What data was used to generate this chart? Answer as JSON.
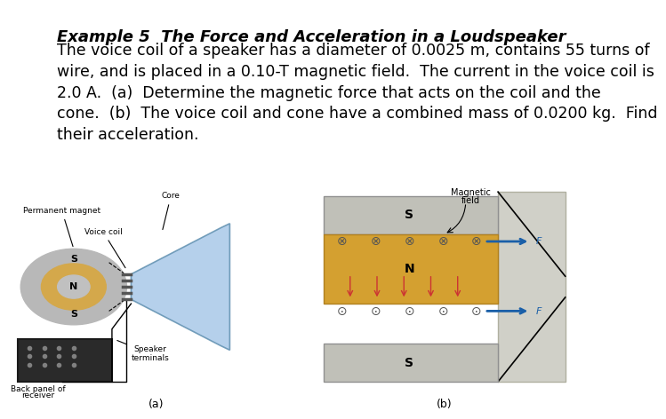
{
  "title": "Example 5  The Force and Acceleration in a Loudspeaker",
  "body_text": "The voice coil of a speaker has a diameter of 0.0025 m, contains 55 turns of\nwire, and is placed in a 0.10-T magnetic field.  The current in the voice coil is\n2.0 A.  (a)  Determine the magnetic force that acts on the coil and the\ncone.  (b)  The voice coil and cone have a combined mass of 0.0200 kg.  Find\ntheir acceleration.",
  "title_fontsize": 13,
  "body_fontsize": 12.5,
  "bg_color": "#ffffff",
  "text_color": "#000000",
  "label_a": "(a)",
  "label_b": "(b)"
}
